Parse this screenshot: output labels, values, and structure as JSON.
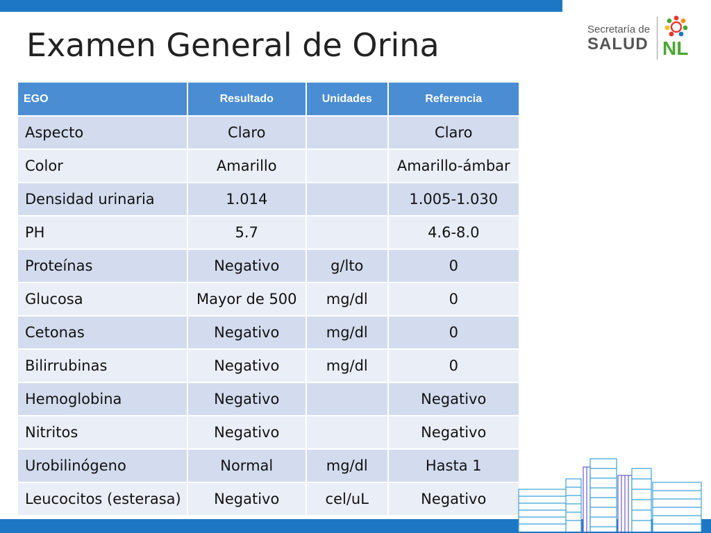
{
  "title": "Examen General de Orina",
  "logo": {
    "org": "Secretaría de",
    "dept": "SALUD",
    "region": "NL"
  },
  "colors": {
    "accent_blue": "#1e77c4",
    "header_blue": "#4a8dd3",
    "row_dark": "#d3dcee",
    "row_light": "#eaeef7",
    "logo_green": "#49a832"
  },
  "table": {
    "headers": [
      "EGO",
      "Resultado",
      "Unidades",
      "Referencia"
    ],
    "rows": [
      [
        "Aspecto",
        "Claro",
        "",
        "Claro"
      ],
      [
        "Color",
        "Amarillo",
        "",
        "Amarillo-ámbar"
      ],
      [
        "Densidad urinaria",
        "1.014",
        "",
        "1.005-1.030"
      ],
      [
        "PH",
        "5.7",
        "",
        "4.6-8.0"
      ],
      [
        "Proteínas",
        "Negativo",
        "g/lto",
        "0"
      ],
      [
        "Glucosa",
        "Mayor de 500",
        "mg/dl",
        "0"
      ],
      [
        "Cetonas",
        "Negativo",
        "mg/dl",
        "0"
      ],
      [
        "Bilirrubinas",
        "Negativo",
        "mg/dl",
        "0"
      ],
      [
        "Hemoglobina",
        "Negativo",
        "",
        "Negativo"
      ],
      [
        "Nitritos",
        "Negativo",
        "",
        "Negativo"
      ],
      [
        "Urobilinógeno",
        "Normal",
        "mg/dl",
        "Hasta 1"
      ],
      [
        "Leucocitos (esterasa)",
        "Negativo",
        "cel/uL",
        "Negativo"
      ]
    ]
  }
}
